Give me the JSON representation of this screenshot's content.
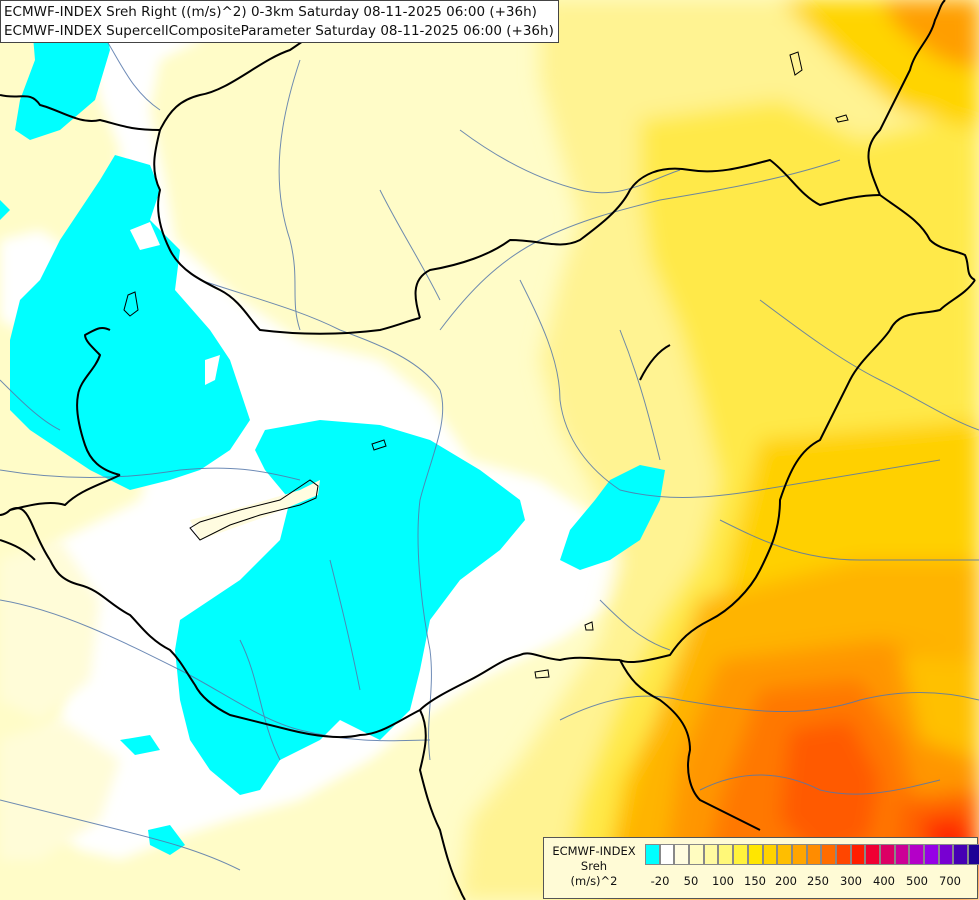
{
  "titles": {
    "line1": "ECMWF-INDEX Sreh Right ((m/s)^2) 0-3km Saturday 08-11-2025 06:00 (+36h)",
    "line2": "ECMWF-INDEX SupercellCompositeParameter Saturday 08-11-2025 06:00 (+36h)"
  },
  "legend": {
    "line1": "ECMWF-INDEX",
    "line2": "Sreh",
    "line3": "(m/s)^2",
    "colors": [
      "#00ffff",
      "#ffffff",
      "#fffce0",
      "#fffcc0",
      "#fffaa0",
      "#fff878",
      "#fff23c",
      "#ffe600",
      "#ffd200",
      "#ffbe00",
      "#ffa500",
      "#ff8c00",
      "#ff6c00",
      "#ff4600",
      "#ff1e00",
      "#f00032",
      "#dc0064",
      "#cc0096",
      "#b400c8",
      "#9600e6",
      "#7800d2",
      "#4600b4",
      "#1e0096",
      "#000082"
    ],
    "ticks": [
      "-20",
      "50",
      "100",
      "150",
      "200",
      "250",
      "300",
      "400",
      "500",
      "700"
    ]
  }
}
